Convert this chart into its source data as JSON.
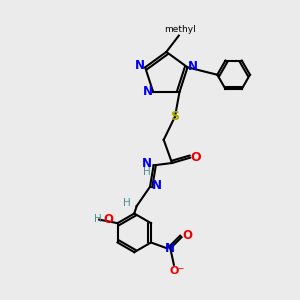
{
  "bg_color": "#ebebeb",
  "atom_colors": {
    "N": "#0000ee",
    "O": "#ee0000",
    "S": "#aaaa00",
    "C": "#000000",
    "H": "#4a9090"
  },
  "bond_color": "#000000"
}
